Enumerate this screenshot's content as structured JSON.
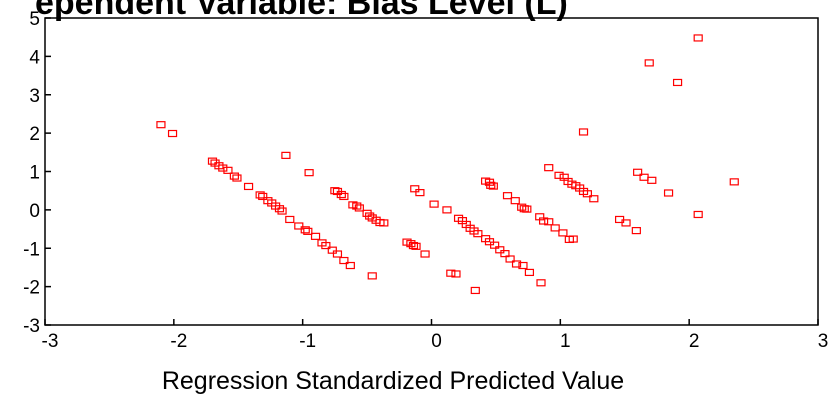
{
  "chart_data": {
    "type": "scatter",
    "title": "ependent Variable: Bias Level (L)",
    "xlabel": "Regression Standardized Predicted Value",
    "ylabel": "",
    "xlim": [
      -3,
      3
    ],
    "ylim": [
      -3,
      5
    ],
    "xticks": [
      -3,
      -2,
      -1,
      0,
      1,
      2,
      3
    ],
    "yticks": [
      -3,
      -2,
      -1,
      0,
      1,
      2,
      3,
      4,
      5
    ],
    "x_tick_labels": [
      "-3",
      "-2",
      "-1",
      "0",
      "1",
      "2",
      "3"
    ],
    "y_tick_labels": [
      "-3",
      "-2",
      "-1",
      "0",
      "1",
      "2",
      "3",
      "4",
      "5"
    ],
    "grid": false,
    "marker_color": "#ff0000",
    "marker_shape": "hollow-square",
    "points": [
      [
        -2.1,
        2.22
      ],
      [
        -2.01,
        1.99
      ],
      [
        -1.7,
        1.27
      ],
      [
        -1.68,
        1.22
      ],
      [
        -1.65,
        1.15
      ],
      [
        -1.62,
        1.09
      ],
      [
        -1.58,
        1.03
      ],
      [
        -1.53,
        0.88
      ],
      [
        -1.51,
        0.83
      ],
      [
        -1.42,
        0.61
      ],
      [
        -1.33,
        0.39
      ],
      [
        -1.31,
        0.35
      ],
      [
        -1.27,
        0.24
      ],
      [
        -1.24,
        0.18
      ],
      [
        -1.21,
        0.1
      ],
      [
        -1.18,
        0.03
      ],
      [
        -1.16,
        -0.03
      ],
      [
        -1.1,
        -0.25
      ],
      [
        -1.03,
        -0.42
      ],
      [
        -0.98,
        -0.52
      ],
      [
        -0.96,
        -0.56
      ],
      [
        -0.9,
        -0.69
      ],
      [
        -0.85,
        -0.86
      ],
      [
        -0.82,
        -0.93
      ],
      [
        -0.77,
        -1.05
      ],
      [
        -0.73,
        -1.15
      ],
      [
        -0.68,
        -1.32
      ],
      [
        -0.63,
        -1.45
      ],
      [
        -0.46,
        -1.72
      ],
      [
        -1.13,
        1.42
      ],
      [
        -0.95,
        0.97
      ],
      [
        -0.75,
        0.5
      ],
      [
        -0.73,
        0.48
      ],
      [
        -0.7,
        0.4
      ],
      [
        -0.68,
        0.35
      ],
      [
        -0.61,
        0.13
      ],
      [
        -0.58,
        0.1
      ],
      [
        -0.56,
        0.05
      ],
      [
        -0.5,
        -0.09
      ],
      [
        -0.48,
        -0.16
      ],
      [
        -0.46,
        -0.21
      ],
      [
        -0.43,
        -0.27
      ],
      [
        -0.4,
        -0.33
      ],
      [
        -0.37,
        -0.34
      ],
      [
        -0.19,
        -0.84
      ],
      [
        -0.16,
        -0.88
      ],
      [
        -0.14,
        -0.93
      ],
      [
        -0.12,
        -0.95
      ],
      [
        -0.05,
        -1.15
      ],
      [
        -0.13,
        0.55
      ],
      [
        -0.09,
        0.45
      ],
      [
        0.02,
        0.15
      ],
      [
        0.12,
        0.0
      ],
      [
        0.15,
        -1.65
      ],
      [
        0.19,
        -1.67
      ],
      [
        0.21,
        -0.22
      ],
      [
        0.24,
        -0.28
      ],
      [
        0.27,
        -0.38
      ],
      [
        0.3,
        -0.48
      ],
      [
        0.33,
        -0.55
      ],
      [
        0.36,
        -0.62
      ],
      [
        0.42,
        -0.75
      ],
      [
        0.45,
        -0.83
      ],
      [
        0.49,
        -0.92
      ],
      [
        0.53,
        -1.04
      ],
      [
        0.57,
        -1.14
      ],
      [
        0.61,
        -1.28
      ],
      [
        0.66,
        -1.41
      ],
      [
        0.71,
        -1.45
      ],
      [
        0.76,
        -1.63
      ],
      [
        0.85,
        -1.9
      ],
      [
        0.34,
        -2.1
      ],
      [
        0.42,
        0.75
      ],
      [
        0.45,
        0.72
      ],
      [
        0.46,
        0.64
      ],
      [
        0.48,
        0.62
      ],
      [
        0.59,
        0.37
      ],
      [
        0.65,
        0.24
      ],
      [
        0.7,
        0.07
      ],
      [
        0.72,
        0.03
      ],
      [
        0.74,
        0.02
      ],
      [
        0.84,
        -0.18
      ],
      [
        0.87,
        -0.29
      ],
      [
        0.91,
        -0.31
      ],
      [
        0.96,
        -0.47
      ],
      [
        1.02,
        -0.6
      ],
      [
        1.07,
        -0.77
      ],
      [
        1.1,
        -0.76
      ],
      [
        0.91,
        1.1
      ],
      [
        0.99,
        0.9
      ],
      [
        1.03,
        0.85
      ],
      [
        1.06,
        0.74
      ],
      [
        1.09,
        0.67
      ],
      [
        1.12,
        0.63
      ],
      [
        1.15,
        0.57
      ],
      [
        1.18,
        0.48
      ],
      [
        1.21,
        0.42
      ],
      [
        1.26,
        0.29
      ],
      [
        1.18,
        2.03
      ],
      [
        1.46,
        -0.25
      ],
      [
        1.51,
        -0.34
      ],
      [
        1.59,
        -0.54
      ],
      [
        1.6,
        0.98
      ],
      [
        1.65,
        0.85
      ],
      [
        1.71,
        0.77
      ],
      [
        1.69,
        3.83
      ],
      [
        1.84,
        0.44
      ],
      [
        1.91,
        3.32
      ],
      [
        2.07,
        4.48
      ],
      [
        2.07,
        -0.12
      ],
      [
        2.35,
        0.73
      ]
    ]
  }
}
